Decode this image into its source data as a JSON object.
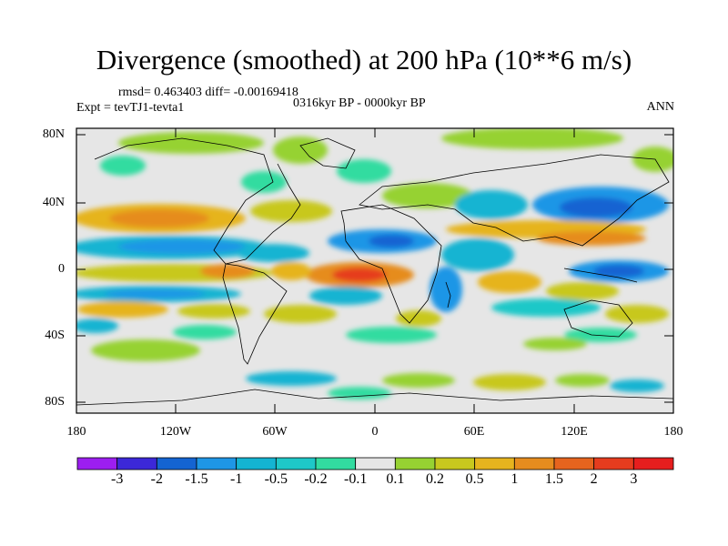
{
  "title": "Divergence (smoothed) at 200 hPa (10**6 m/s)",
  "stats": "rmsd= 0.463403 diff= -0.00169418",
  "period": "0316kyr BP - 0000kyr BP",
  "experiment": "Expt = tevTJ1-tevta1",
  "season": "ANN",
  "lat_labels": [
    "80N",
    "40N",
    "0",
    "40S",
    "80S"
  ],
  "lon_labels": [
    "180",
    "120W",
    "60W",
    "0",
    "60E",
    "120E",
    "180"
  ],
  "colorbar": {
    "labels": [
      "-3",
      "-2",
      "-1.5",
      "-1",
      "-0.5",
      "-0.2",
      "-0.1",
      "0.1",
      "0.2",
      "0.5",
      "1",
      "1.5",
      "2",
      "3"
    ],
    "colors": [
      "#9c1ef0",
      "#3c28d8",
      "#1464d2",
      "#1e96e6",
      "#14b4d2",
      "#1ec8c8",
      "#32dca0",
      "#e6e6e6",
      "#96d232",
      "#c8c81e",
      "#e6b41e",
      "#e68c1e",
      "#e6641e",
      "#e63c1e",
      "#e61e1e"
    ]
  }
}
